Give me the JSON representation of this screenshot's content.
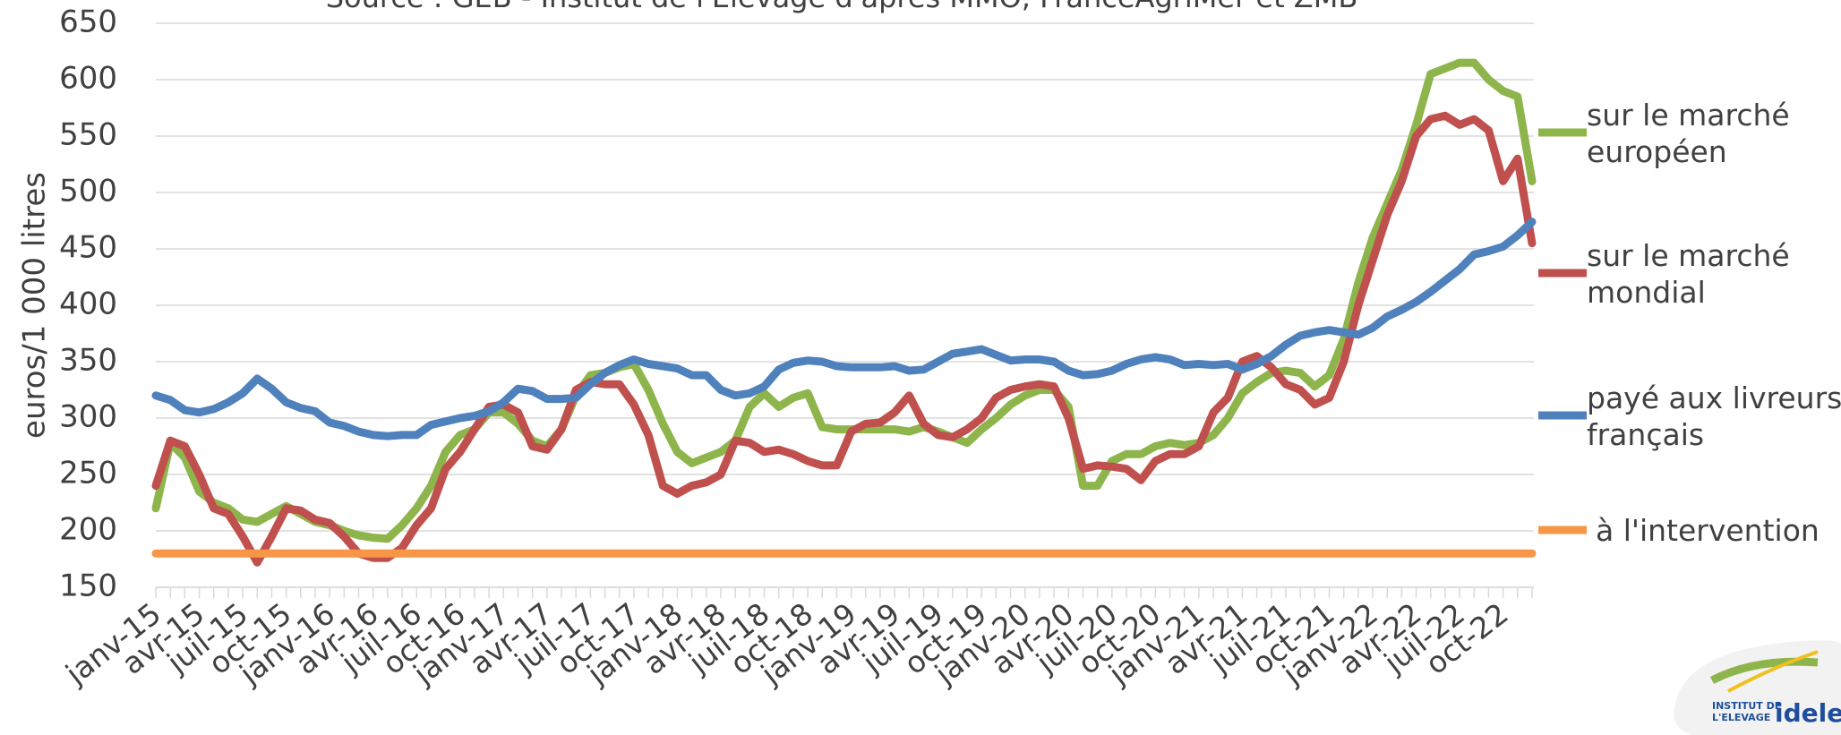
{
  "chart_data": {
    "type": "line",
    "subtitle": "Source : GEB - Institut de l'Elevage d'après MMO, FranceAgriMer et ZMB",
    "y_label": "euros/1 000 litres",
    "categories": [
      "janv-15",
      null,
      null,
      "avr-15",
      null,
      null,
      "juil-15",
      null,
      null,
      "oct-15",
      null,
      null,
      "janv-16",
      null,
      null,
      "avr-16",
      null,
      null,
      "juil-16",
      null,
      null,
      "oct-16",
      null,
      null,
      "janv-17",
      null,
      null,
      "avr-17",
      null,
      null,
      "juil-17",
      null,
      null,
      "oct-17",
      null,
      null,
      "janv-18",
      null,
      null,
      "avr-18",
      null,
      null,
      "juil-18",
      null,
      null,
      "oct-18",
      null,
      null,
      "janv-19",
      null,
      null,
      "avr-19",
      null,
      null,
      "juil-19",
      null,
      null,
      "oct-19",
      null,
      null,
      "janv-20",
      null,
      null,
      "avr-20",
      null,
      null,
      "juil-20",
      null,
      null,
      "oct-20",
      null,
      null,
      "janv-21",
      null,
      null,
      "avr-21",
      null,
      null,
      "juil-21",
      null,
      null,
      "oct-21",
      null,
      null,
      "janv-22",
      null,
      null,
      "avr-22",
      null,
      null,
      "juil-22",
      null,
      null,
      "oct-22",
      null,
      null
    ],
    "series": [
      {
        "name": "sur le marché européen",
        "color": "#8db54b",
        "values": [
          220,
          278,
          265,
          235,
          225,
          220,
          210,
          208,
          215,
          222,
          215,
          208,
          205,
          200,
          196,
          194,
          193,
          205,
          220,
          240,
          270,
          285,
          290,
          305,
          305,
          295,
          280,
          275,
          290,
          320,
          338,
          340,
          345,
          348,
          325,
          295,
          270,
          260,
          265,
          270,
          280,
          310,
          322,
          310,
          318,
          322,
          292,
          290,
          290,
          290,
          290,
          290,
          288,
          292,
          288,
          283,
          278,
          290,
          300,
          312,
          320,
          325,
          325,
          310,
          240,
          240,
          262,
          268,
          268,
          275,
          278,
          276,
          278,
          285,
          300,
          322,
          332,
          340,
          342,
          340,
          328,
          338,
          370,
          420,
          460,
          490,
          520,
          560,
          605,
          610,
          615,
          615,
          600,
          590,
          585,
          510
        ]
      },
      {
        "name": "sur le marché mondial",
        "color": "#c0504d",
        "values": [
          240,
          280,
          275,
          250,
          220,
          215,
          195,
          172,
          195,
          220,
          218,
          210,
          207,
          195,
          180,
          176,
          176,
          185,
          205,
          220,
          255,
          270,
          290,
          310,
          312,
          305,
          275,
          272,
          290,
          325,
          332,
          330,
          330,
          312,
          285,
          240,
          233,
          240,
          243,
          250,
          280,
          278,
          270,
          272,
          268,
          262,
          258,
          258,
          288,
          295,
          296,
          305,
          320,
          295,
          285,
          283,
          290,
          300,
          318,
          325,
          328,
          330,
          328,
          300,
          255,
          258,
          257,
          255,
          245,
          262,
          268,
          268,
          275,
          305,
          318,
          350,
          355,
          345,
          330,
          325,
          312,
          318,
          350,
          400,
          440,
          480,
          510,
          550,
          565,
          568,
          560,
          565,
          555,
          510,
          530,
          455
        ]
      },
      {
        "name": "payé aux livreurs français",
        "color": "#4f81bd",
        "values": [
          320,
          316,
          307,
          305,
          308,
          314,
          322,
          335,
          326,
          314,
          309,
          306,
          296,
          293,
          288,
          285,
          284,
          285,
          285,
          294,
          297,
          300,
          302,
          306,
          314,
          326,
          324,
          317,
          317,
          318,
          330,
          340,
          347,
          352,
          348,
          346,
          344,
          338,
          338,
          325,
          320,
          322,
          328,
          343,
          349,
          351,
          350,
          346,
          345,
          345,
          345,
          346,
          342,
          343,
          350,
          357,
          359,
          361,
          356,
          351,
          352,
          352,
          350,
          342,
          338,
          339,
          342,
          348,
          352,
          354,
          352,
          347,
          348,
          347,
          348,
          343,
          348,
          355,
          365,
          373,
          376,
          378,
          376,
          374,
          380,
          390,
          396,
          403,
          412,
          422,
          432,
          445,
          448,
          452,
          462,
          474
        ]
      },
      {
        "name": "à l'intervention",
        "color": "#f79646",
        "values": [
          180,
          180,
          180,
          180,
          180,
          180,
          180,
          180,
          180,
          180,
          180,
          180,
          180,
          180,
          180,
          180,
          180,
          180,
          180,
          180,
          180,
          180,
          180,
          180,
          180,
          180,
          180,
          180,
          180,
          180,
          180,
          180,
          180,
          180,
          180,
          180,
          180,
          180,
          180,
          180,
          180,
          180,
          180,
          180,
          180,
          180,
          180,
          180,
          180,
          180,
          180,
          180,
          180,
          180,
          180,
          180,
          180,
          180,
          180,
          180,
          180,
          180,
          180,
          180,
          180,
          180,
          180,
          180,
          180,
          180,
          180,
          180,
          180,
          180,
          180,
          180,
          180,
          180,
          180,
          180,
          180,
          180,
          180,
          180,
          180,
          180,
          180,
          180,
          180,
          180,
          180,
          180,
          180,
          180,
          180,
          180
        ]
      }
    ],
    "ylim": [
      150,
      650
    ],
    "yticks": [
      150,
      200,
      250,
      300,
      350,
      400,
      450,
      500,
      550,
      600,
      650
    ],
    "grid": true,
    "legend": "right"
  },
  "logo": {
    "line1": "INSTITUT DE",
    "line2": "L'ELEVAGE",
    "brand": "idele"
  }
}
